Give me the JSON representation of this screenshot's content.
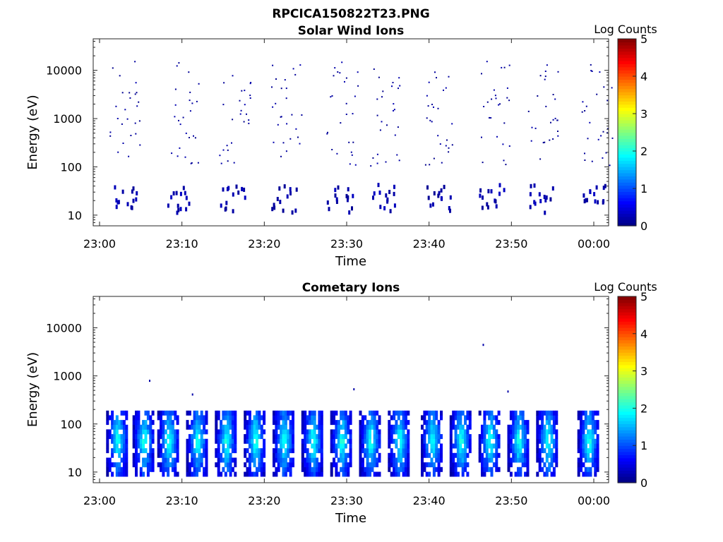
{
  "figure": {
    "title": "RPCICA150822T23.PNG"
  },
  "chart_data": [
    {
      "type": "heatmap",
      "title": "Solar Wind Ions",
      "xlabel": "Time",
      "ylabel": "Energy (eV)",
      "x_ticks": [
        "23:00",
        "23:10",
        "23:20",
        "23:30",
        "23:40",
        "23:50",
        "00:00"
      ],
      "x_range": [
        "23:00",
        "00:00"
      ],
      "y_scale": "log",
      "y_ticks": [
        "10",
        "100",
        "1000",
        "10000"
      ],
      "ylim": [
        6,
        45000
      ],
      "colorbar": {
        "label": "Log Counts",
        "ticks": [
          "0",
          "1",
          "2",
          "3",
          "4",
          "5"
        ],
        "range": [
          0,
          5
        ],
        "colormap": "jet"
      },
      "cycle_starts_min": [
        1.2,
        8.2,
        14.5,
        20.8,
        27.5,
        32.8,
        39.5,
        46.0,
        52.0,
        58.5
      ],
      "typical_energy_eV": [
        10,
        40
      ],
      "sparse_scatter_energy_eV": [
        100,
        15000
      ],
      "typical_log_counts": 0.2
    },
    {
      "type": "heatmap",
      "title": "Cometary Ions",
      "xlabel": "Time",
      "ylabel": "Energy (eV)",
      "x_ticks": [
        "23:00",
        "23:10",
        "23:20",
        "23:30",
        "23:40",
        "23:50",
        "00:00"
      ],
      "x_range": [
        "23:00",
        "00:00"
      ],
      "y_scale": "log",
      "y_ticks": [
        "10",
        "100",
        "1000",
        "10000"
      ],
      "ylim": [
        6,
        45000
      ],
      "colorbar": {
        "label": "Log Counts",
        "ticks": [
          "0",
          "1",
          "2",
          "3",
          "4",
          "5"
        ],
        "range": [
          0,
          5
        ],
        "colormap": "jet"
      },
      "cycle_starts_min": [
        0.8,
        4.0,
        7.0,
        10.5,
        14.0,
        17.5,
        21.0,
        24.5,
        28.0,
        31.5,
        35.0,
        39.0,
        42.5,
        46.0,
        49.5,
        53.0,
        58.0
      ],
      "typical_energy_eV": [
        8,
        150
      ],
      "peak_energy_eV": 40,
      "peak_log_counts": 2.0,
      "isolated_points": [
        {
          "time_min": 6.0,
          "energy_eV": 750
        },
        {
          "time_min": 11.2,
          "energy_eV": 390
        },
        {
          "time_min": 30.8,
          "energy_eV": 500
        },
        {
          "time_min": 46.5,
          "energy_eV": 4200
        },
        {
          "time_min": 49.5,
          "energy_eV": 450
        }
      ]
    }
  ]
}
